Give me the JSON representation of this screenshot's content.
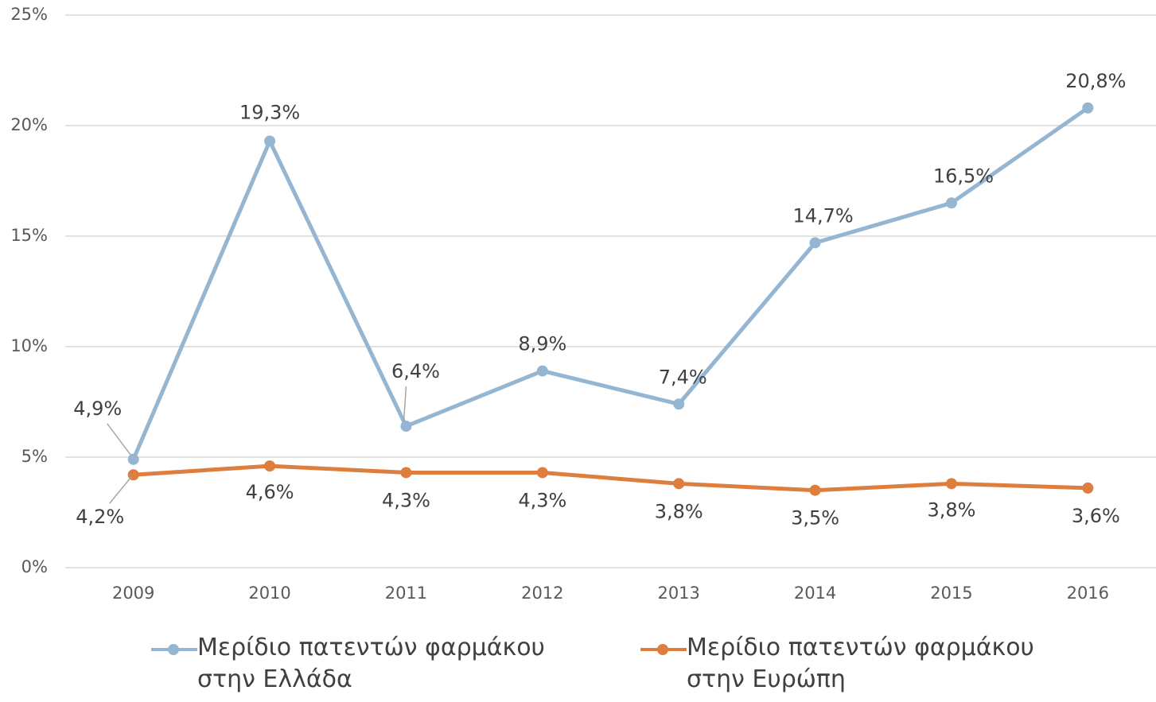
{
  "chart_data": {
    "type": "line",
    "categories": [
      "2009",
      "2010",
      "2011",
      "2012",
      "2013",
      "2014",
      "2015",
      "2016"
    ],
    "series": [
      {
        "name": "Μερίδιο πατεντών φαρμάκου στην Ελλάδα",
        "color": "#94b6d2",
        "values": [
          4.9,
          19.3,
          6.4,
          8.9,
          7.4,
          14.7,
          16.5,
          20.8
        ],
        "value_labels": [
          "4,9%",
          "19,3%",
          "6,4%",
          "8,9%",
          "7,4%",
          "14,7%",
          "16,5%",
          "20,8%"
        ]
      },
      {
        "name": "Μερίδιο πατεντών φαρμάκου στην Ευρώπη",
        "color": "#dd7e3e",
        "values": [
          4.2,
          4.6,
          4.3,
          4.3,
          3.8,
          3.5,
          3.8,
          3.6
        ],
        "value_labels": [
          "4,2%",
          "4,6%",
          "4,3%",
          "4,3%",
          "3,8%",
          "3,5%",
          "3,8%",
          "3,6%"
        ]
      }
    ],
    "ylim": [
      0,
      25
    ],
    "yticks": [
      {
        "value": 0,
        "label": "0%"
      },
      {
        "value": 5,
        "label": "5%"
      },
      {
        "value": 10,
        "label": "10%"
      },
      {
        "value": 15,
        "label": "15%"
      },
      {
        "value": 20,
        "label": "20%"
      },
      {
        "value": 25,
        "label": "25%"
      }
    ],
    "grid": true,
    "legend": "bottom"
  }
}
